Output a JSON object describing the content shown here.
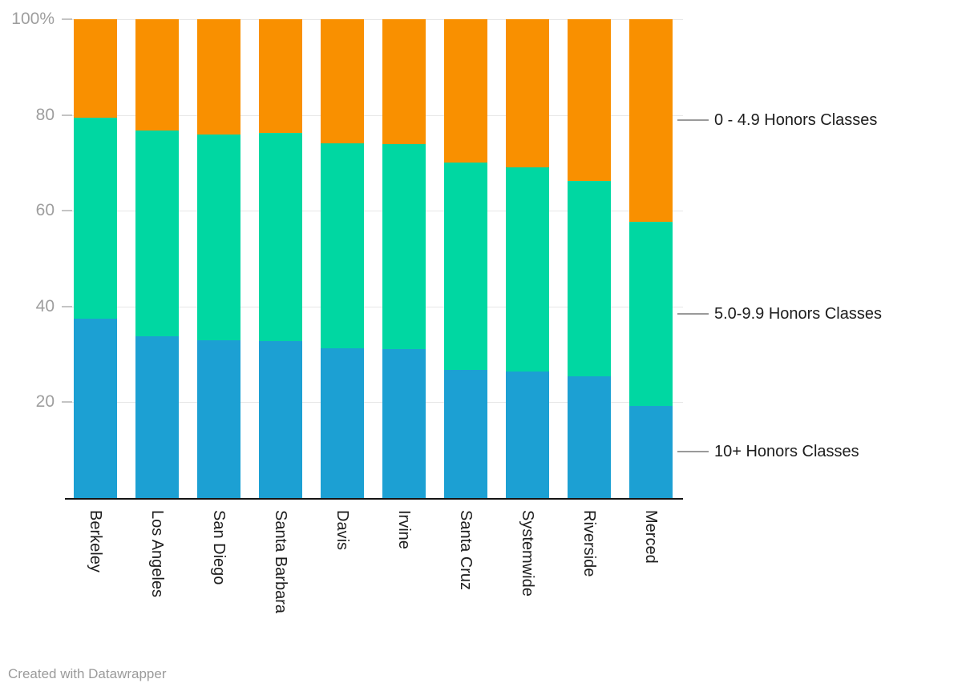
{
  "chart_data": {
    "type": "bar",
    "variant": "stacked-column-100pct",
    "title": "",
    "xlabel": "",
    "ylabel": "",
    "ylim": [
      0,
      100
    ],
    "grid": true,
    "legend_position": "right-of-last-bar",
    "categories": [
      "Berkeley",
      "Los Angeles",
      "San Diego",
      "Santa Barbara",
      "Davis",
      "Irvine",
      "Santa Cruz",
      "Systemwide",
      "Riverside",
      "Merced"
    ],
    "series": [
      {
        "name": "10+ Honors Classes",
        "color": "#1CA0D3",
        "values": [
          37.5,
          33.7,
          33.0,
          32.7,
          31.3,
          31.1,
          26.7,
          26.5,
          25.5,
          19.3
        ]
      },
      {
        "name": "5.0-9.9 Honors Classes",
        "color": "#00D7A2",
        "values": [
          42.0,
          43.0,
          42.9,
          43.5,
          42.7,
          42.8,
          43.3,
          42.5,
          40.7,
          38.4
        ]
      },
      {
        "name": "0 - 4.9 Honors Classes",
        "color": "#F99000",
        "values": [
          20.5,
          23.3,
          24.1,
          23.8,
          26.0,
          26.1,
          30.0,
          31.0,
          33.8,
          42.3
        ]
      }
    ],
    "y_axis": {
      "ticks": [
        {
          "value": 100,
          "label": "100%"
        },
        {
          "value": 80,
          "label": "80"
        },
        {
          "value": 60,
          "label": "60"
        },
        {
          "value": 40,
          "label": "40"
        },
        {
          "value": 20,
          "label": "20"
        }
      ]
    },
    "legend": [
      "0 - 4.9 Honors Classes",
      "5.0-9.9 Honors Classes",
      "10+ Honors Classes"
    ]
  },
  "footer": {
    "credit": "Created with Datawrapper"
  },
  "colors": {
    "background": "#FFFFFF",
    "grid": "#E7E7E7",
    "grid_tick": "#C4C4C4",
    "axis": "#141414",
    "axis_label": "#9E9E9E",
    "category_label": "#1D1D1D",
    "legend_text": "#1D1D1D",
    "legend_line": "#9A9A9A",
    "credit": "#9B9B9B"
  }
}
